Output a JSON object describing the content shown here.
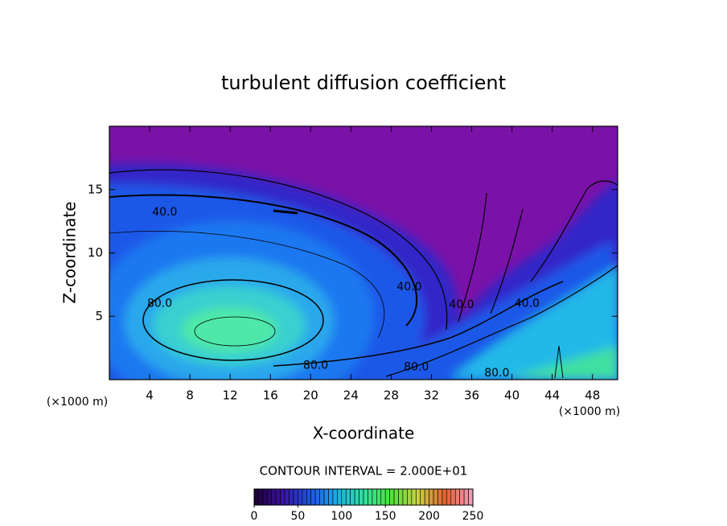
{
  "chart_data": {
    "type": "contour",
    "title": "turbulent diffusion coefficient",
    "x_label": "X-coordinate",
    "y_label": "Z-coordinate",
    "x_unit_label": "(×1000 m)",
    "y_unit_label": "(×1000 m)",
    "xlim": [
      0,
      50.5
    ],
    "xticks": [
      4,
      8,
      12,
      16,
      20,
      24,
      28,
      32,
      36,
      40,
      44,
      48
    ],
    "ylim": [
      0,
      20
    ],
    "yticks": [
      5,
      10,
      15
    ],
    "contour_interval_label": "CONTOUR INTERVAL = 2.000E+01",
    "contour_labels": [
      {
        "text": "40.0",
        "x": 5.5,
        "y": 13.2
      },
      {
        "text": "80.0",
        "x": 5.0,
        "y": 6.0
      },
      {
        "text": "80.0",
        "x": 20.5,
        "y": 1.1
      },
      {
        "text": "40.0",
        "x": 29.8,
        "y": 7.3
      },
      {
        "text": "40.0",
        "x": 35.0,
        "y": 5.9
      },
      {
        "text": "80.0",
        "x": 30.5,
        "y": 1.0
      },
      {
        "text": "80.0",
        "x": 38.5,
        "y": 0.5
      },
      {
        "text": "40.0",
        "x": 41.5,
        "y": 6.0
      }
    ],
    "colorbar": {
      "lim": [
        0,
        250
      ],
      "ticks": [
        0,
        50,
        100,
        150,
        200,
        250
      ],
      "colormap": [
        "#1a0030",
        "#3a10a0",
        "#1d4fe0",
        "#22a8e8",
        "#30e0a0",
        "#50e040",
        "#c8d040",
        "#e06030",
        "#f0a0c0"
      ]
    }
  }
}
